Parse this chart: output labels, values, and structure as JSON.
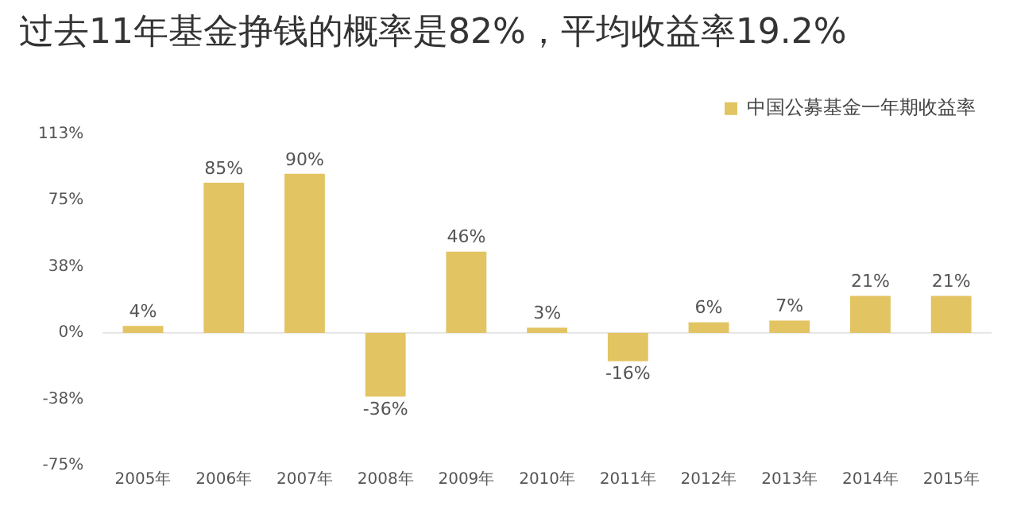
{
  "chart_data": {
    "type": "bar",
    "title": "过去11年基金挣钱的概率是82%，平均收益率19.2%",
    "categories": [
      "2005年",
      "2006年",
      "2007年",
      "2008年",
      "2009年",
      "2010年",
      "2011年",
      "2012年",
      "2013年",
      "2014年",
      "2015年"
    ],
    "series": [
      {
        "name": "中国公募基金一年期收益率",
        "color": "#e3c462",
        "values": [
          4,
          85,
          90,
          -36,
          46,
          3,
          -16,
          6,
          7,
          21,
          21
        ]
      }
    ],
    "ylim": [
      -75,
      112.5
    ],
    "yticks": [
      {
        "value": -75,
        "label": "-75%"
      },
      {
        "value": -37.5,
        "label": "-38%"
      },
      {
        "value": 0,
        "label": "0%"
      },
      {
        "value": 37.5,
        "label": "38%"
      },
      {
        "value": 75,
        "label": "75%"
      },
      {
        "value": 112.5,
        "label": "113%"
      }
    ],
    "value_labels": [
      "4%",
      "85%",
      "90%",
      "-36%",
      "46%",
      "3%",
      "-16%",
      "6%",
      "7%",
      "21%",
      "21%"
    ],
    "ref_lines": [
      {
        "axis": "y",
        "value": 0,
        "color": "#e6e6e6"
      }
    ],
    "legend": "top right",
    "grid": false
  }
}
